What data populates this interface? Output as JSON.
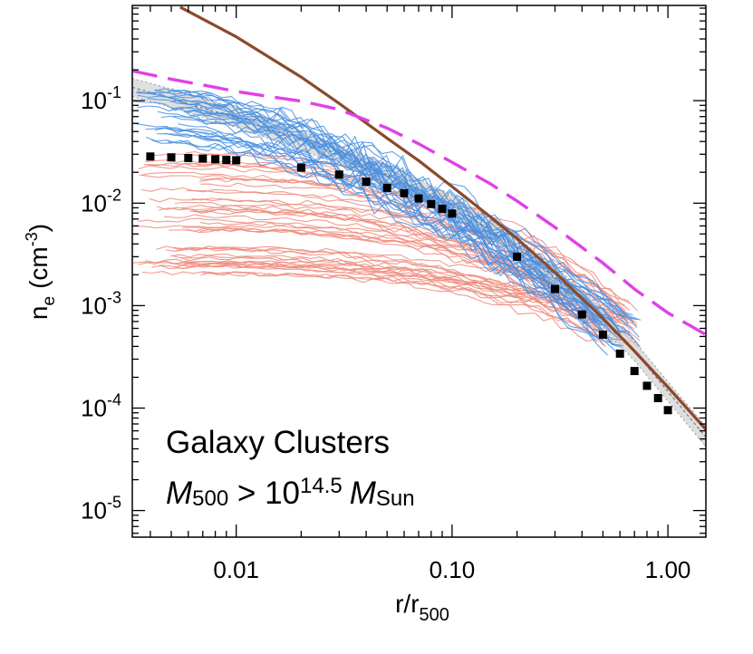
{
  "chart_data": {
    "type": "line",
    "title": "",
    "xlabel": "r/r",
    "xlabel_sub": "500",
    "ylabel_main": "n",
    "ylabel_sub": "e",
    "ylabel_unit": "(cm",
    "ylabel_exp": "-3",
    "ylabel_close": ")",
    "x_scale": "log",
    "y_scale": "log",
    "xlim": [
      0.0033,
      1.5
    ],
    "ylim": [
      5.5e-06,
      0.85
    ],
    "x_ticks": [
      {
        "value": 0.01,
        "label": "0.01"
      },
      {
        "value": 0.1,
        "label": "0.10"
      },
      {
        "value": 1.0,
        "label": "1.00"
      }
    ],
    "y_ticks": [
      {
        "value": 0.1,
        "base": "10",
        "exp": "-1"
      },
      {
        "value": 0.01,
        "base": "10",
        "exp": "-2"
      },
      {
        "value": 0.001,
        "base": "10",
        "exp": "-3"
      },
      {
        "value": 0.0001,
        "base": "10",
        "exp": "-4"
      },
      {
        "value": 1e-05,
        "base": "10",
        "exp": "-5"
      }
    ],
    "annotation": {
      "line1": "Galaxy Clusters",
      "line2_m": "M",
      "line2_m_sub": "500",
      "line2_gt": " > 10",
      "line2_exp": "14.5",
      "line2_ms": "M",
      "line2_ms_sub": "Sun"
    },
    "colors": {
      "cool_core": "#4a90e2",
      "non_cool_core": "#ee8b7c",
      "band": "#d4d4d4",
      "band_line": "#999999",
      "brown_model": "#8b4a2b",
      "magenta_model": "#e040e8",
      "points": "#000000"
    },
    "series": [
      {
        "name": "average-profile",
        "style": "squares",
        "x": [
          0.004,
          0.005,
          0.006,
          0.007,
          0.008,
          0.009,
          0.01,
          0.02,
          0.03,
          0.04,
          0.05,
          0.06,
          0.07,
          0.08,
          0.09,
          0.1,
          0.2,
          0.3,
          0.4,
          0.5,
          0.6,
          0.7,
          0.8,
          0.9,
          1.0
        ],
        "y": [
          0.0285,
          0.028,
          0.0276,
          0.0272,
          0.0268,
          0.0264,
          0.0262,
          0.0222,
          0.019,
          0.0162,
          0.0141,
          0.0125,
          0.0111,
          0.0098,
          0.0088,
          0.0079,
          0.003,
          0.00145,
          0.00082,
          0.00052,
          0.00034,
          0.00023,
          0.000165,
          0.000125,
          9.55e-05
        ]
      },
      {
        "name": "brown-model",
        "style": "solid",
        "x": [
          0.0055,
          0.01,
          0.02,
          0.03,
          0.05,
          0.07,
          0.1,
          0.15,
          0.2,
          0.3,
          0.5,
          0.7,
          1.0,
          1.5
        ],
        "y": [
          0.82,
          0.42,
          0.17,
          0.094,
          0.043,
          0.026,
          0.0145,
          0.0074,
          0.0045,
          0.0021,
          0.00075,
          0.00036,
          0.00016,
          6.2e-05
        ]
      },
      {
        "name": "magenta-model",
        "style": "dashed",
        "x": [
          0.0033,
          0.005,
          0.008,
          0.01,
          0.015,
          0.02,
          0.03,
          0.05,
          0.07,
          0.1,
          0.15,
          0.2,
          0.3,
          0.5,
          0.7,
          1.0,
          1.5
        ],
        "y": [
          0.195,
          0.162,
          0.135,
          0.123,
          0.108,
          0.099,
          0.082,
          0.054,
          0.038,
          0.025,
          0.0155,
          0.0105,
          0.0058,
          0.0026,
          0.00145,
          0.00085,
          0.00052
        ]
      },
      {
        "name": "gray-band-center",
        "style": "dotted",
        "x": [
          0.0033,
          0.005,
          0.01,
          0.02,
          0.05,
          0.1,
          0.2,
          0.3,
          0.5,
          0.7,
          1.0,
          1.5
        ],
        "y": [
          0.135,
          0.105,
          0.068,
          0.041,
          0.019,
          0.0095,
          0.0037,
          0.0019,
          0.00075,
          0.00036,
          0.000145,
          5.2e-05
        ]
      }
    ],
    "band": {
      "x": [
        0.0033,
        0.005,
        0.01,
        0.02,
        0.05,
        0.1,
        0.2,
        0.3,
        0.5,
        0.7,
        1.0,
        1.5
      ],
      "upper": [
        0.165,
        0.13,
        0.085,
        0.051,
        0.024,
        0.012,
        0.0046,
        0.0024,
        0.00093,
        0.00045,
        0.00018,
        6.6e-05
      ],
      "lower": [
        0.11,
        0.086,
        0.055,
        0.033,
        0.0155,
        0.0077,
        0.003,
        0.00155,
        0.00061,
        0.00029,
        0.000117,
        4.2e-05
      ]
    },
    "cool_core_profiles": {
      "count": 34,
      "x_start_range": [
        0.0033,
        0.0075
      ],
      "x_end_range": [
        0.45,
        0.75
      ],
      "y_start_range": [
        0.038,
        0.13
      ],
      "y_end": 0.00055
    },
    "non_cool_core_profiles": {
      "count": 48,
      "x_start_range": [
        0.0033,
        0.007
      ],
      "x_end_range": [
        0.45,
        0.75
      ],
      "y_start_range": [
        0.0019,
        0.032
      ],
      "y_end": 0.00065
    }
  }
}
